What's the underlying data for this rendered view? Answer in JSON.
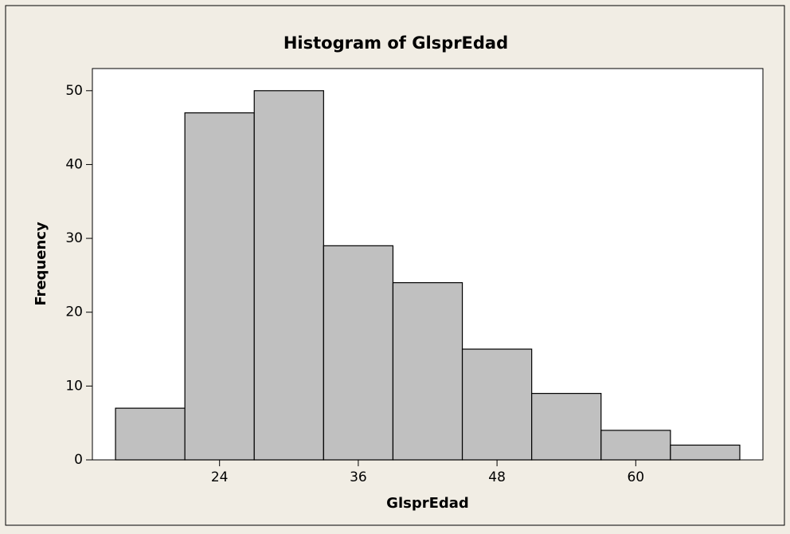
{
  "chart_data": {
    "type": "histogram",
    "title": "Histogram of GlsprEdad",
    "x_label": "GlsprEdad",
    "y_label": "Frequency",
    "bins": [
      15,
      21,
      27,
      33,
      39,
      45,
      51,
      57,
      63,
      69
    ],
    "values": [
      7,
      47,
      50,
      29,
      24,
      15,
      9,
      4,
      2
    ],
    "color": "#c0c0c0",
    "xlim": [
      13,
      71
    ],
    "xticks": [
      24,
      36,
      48,
      60
    ],
    "ylim": [
      0,
      53
    ],
    "yticks": [
      0,
      10,
      20,
      30,
      40,
      50
    ]
  }
}
